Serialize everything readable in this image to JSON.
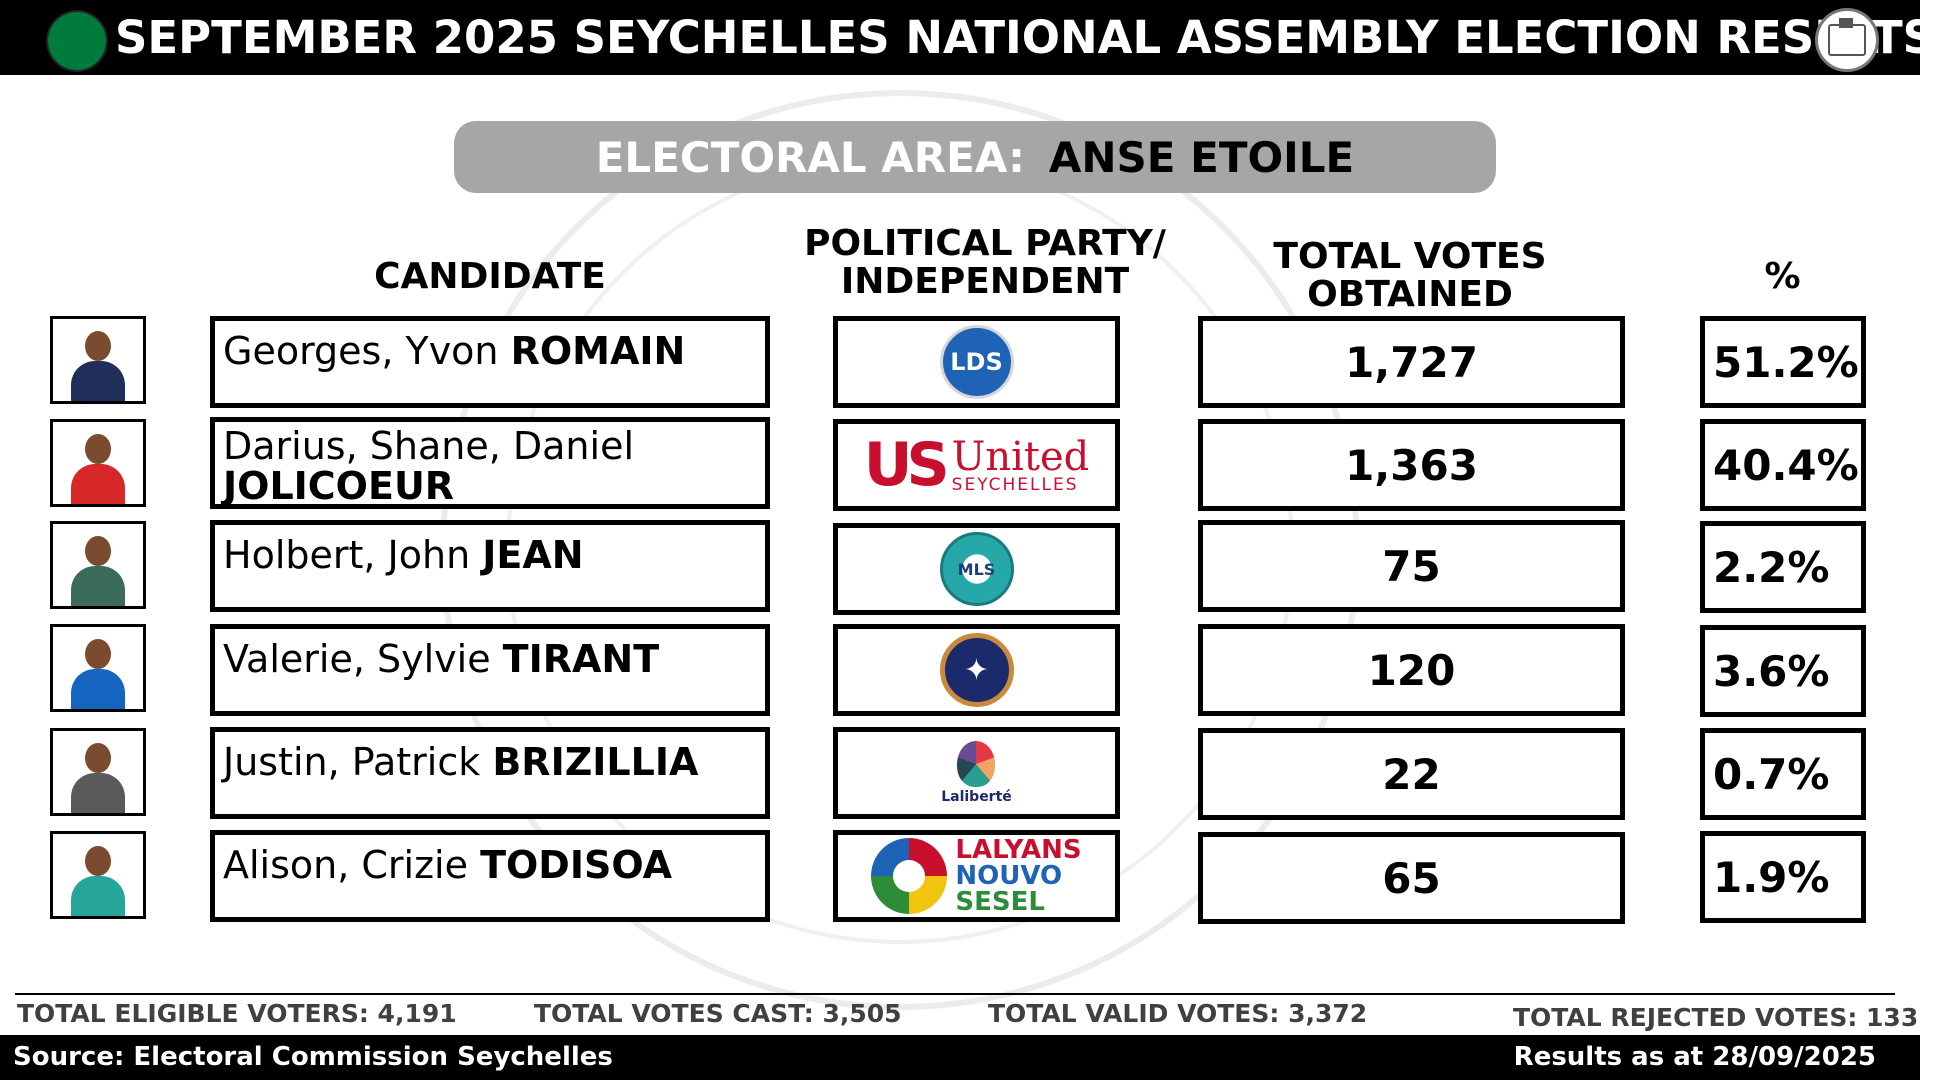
{
  "header": {
    "title": "SEPTEMBER 2025 SEYCHELLES NATIONAL ASSEMBLY ELECTION RESULTS",
    "flag_icon": "seychelles-flag-icon",
    "seal_icon": "electoral-commission-seal-icon"
  },
  "area": {
    "label": "ELECTORAL AREA:",
    "name": "ANSE ETOILE"
  },
  "columns": {
    "candidate": "CANDIDATE",
    "party_line1": "POLITICAL PARTY/",
    "party_line2": "INDEPENDENT",
    "votes_line1": "TOTAL VOTES",
    "votes_line2": "OBTAINED",
    "percent": "%"
  },
  "candidates": [
    {
      "given": "Georges, Yvon ",
      "surname": "ROMAIN",
      "party_logo": "lds-logo",
      "party_text": "LDS",
      "votes": "1,727",
      "percent": "51.2%",
      "photo_color": "#1f2f5a"
    },
    {
      "given": "Darius, Shane, Daniel",
      "surname": "JOLICOEUR",
      "party_logo": "united-seychelles-logo",
      "party_text": "United",
      "party_sub": "SEYCHELLES",
      "party_mark": "US",
      "votes": "1,363",
      "percent": "40.4%",
      "photo_color": "#d62828"
    },
    {
      "given": "Holbert, John ",
      "surname": "JEAN",
      "party_logo": "mls-logo",
      "party_text": "MLS",
      "votes": "75",
      "percent": "2.2%",
      "photo_color": "#3b6b5a"
    },
    {
      "given": "Valerie, Sylvie ",
      "surname": "TIRANT",
      "party_logo": "eagle-logo",
      "votes": "120",
      "percent": "3.6%",
      "photo_color": "#1565c0"
    },
    {
      "given": "Justin, Patrick ",
      "surname": "BRIZILLIA",
      "party_logo": "laliberte-logo",
      "party_text": "Laliberté",
      "votes": "22",
      "percent": "0.7%",
      "photo_color": "#5a5a5a"
    },
    {
      "given": "Alison, Crizie ",
      "surname": "TODISOA",
      "party_logo": "lalyans-nouvo-sesel-logo",
      "party_text_1": "LALYANS",
      "party_text_2": "NOUVO",
      "party_text_3": "SESEL",
      "votes": "65",
      "percent": "1.9%",
      "photo_color": "#26a69a"
    }
  ],
  "totals": {
    "eligible": "TOTAL ELIGIBLE VOTERS: 4,191",
    "cast": "TOTAL VOTES CAST: 3,505",
    "valid": "TOTAL VALID VOTES: 3,372",
    "rejected": "TOTAL REJECTED VOTES: 133"
  },
  "footer": {
    "source": "Source: Electoral Commission Seychelles",
    "as_of": "Results as at 28/09/2025"
  },
  "colors": {
    "header_bg": "#000000",
    "banner_bg": "#a6a6a6",
    "lds_blue": "#1e63b5",
    "us_red": "#c8102e"
  }
}
